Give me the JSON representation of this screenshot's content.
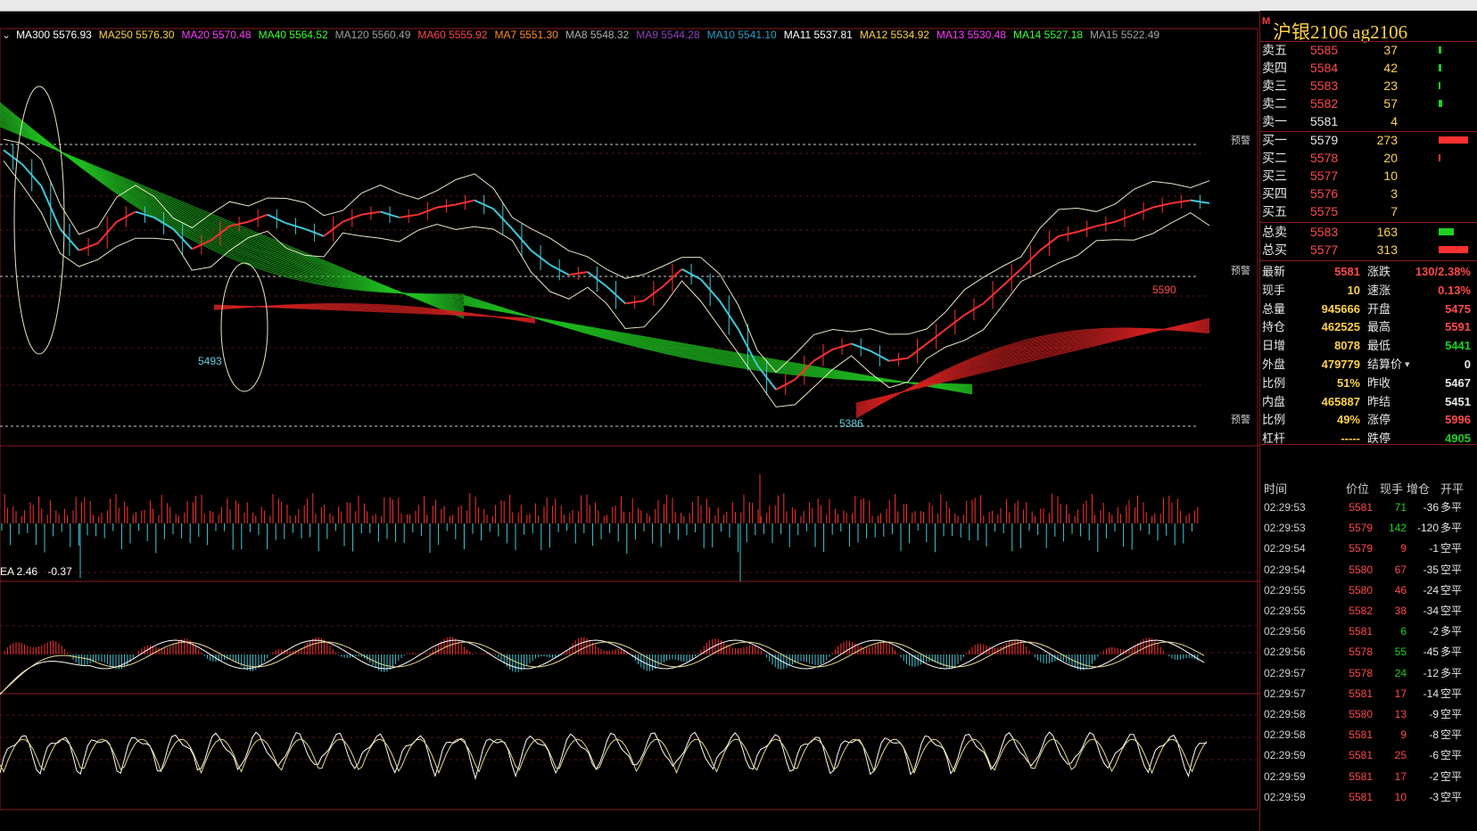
{
  "panel": {
    "title_mark": "M",
    "title": "沪银2106  ag2106",
    "asks": [
      {
        "label": "卖五",
        "price": "5585",
        "vol": "37",
        "bar": 0.05
      },
      {
        "label": "卖四",
        "price": "5584",
        "vol": "42",
        "bar": 0.05
      },
      {
        "label": "卖三",
        "price": "5583",
        "vol": "23",
        "bar": 0.03
      },
      {
        "label": "卖二",
        "price": "5582",
        "vol": "57",
        "bar": 0.07
      },
      {
        "label": "卖一",
        "price": "5581",
        "vol": "4",
        "bar": 0.0
      }
    ],
    "bids": [
      {
        "label": "买一",
        "price": "5579",
        "vol": "273",
        "bar": 0.55
      },
      {
        "label": "买二",
        "price": "5578",
        "vol": "20",
        "bar": 0.03
      },
      {
        "label": "买三",
        "price": "5577",
        "vol": "10",
        "bar": 0.0
      },
      {
        "label": "买四",
        "price": "5576",
        "vol": "3",
        "bar": 0.0
      },
      {
        "label": "买五",
        "price": "5575",
        "vol": "7",
        "bar": 0.0
      }
    ],
    "totals": [
      {
        "label": "总卖",
        "price": "5583",
        "vol": "163",
        "bar": 0.28,
        "color": "#1fd01f"
      },
      {
        "label": "总买",
        "price": "5577",
        "vol": "313",
        "bar": 0.55,
        "color": "#ff3030"
      }
    ],
    "stats": [
      {
        "l1": "最新",
        "v1": "5581",
        "c1": "#ff4a4a",
        "l2": "涨跌",
        "v2": "130/2.38%",
        "c2": "#ff4a4a"
      },
      {
        "l1": "现手",
        "v1": "10",
        "c1": "#ffd24a",
        "l2": "速涨",
        "v2": "0.13%",
        "c2": "#ff4a4a"
      },
      {
        "l1": "总量",
        "v1": "945666",
        "c1": "#ffd24a",
        "l2": "开盘",
        "v2": "5475",
        "c2": "#ff4a4a"
      },
      {
        "l1": "持仓",
        "v1": "462525",
        "c1": "#ffd24a",
        "l2": "最高",
        "v2": "5591",
        "c2": "#ff4a4a"
      },
      {
        "l1": "日增",
        "v1": "8078",
        "c1": "#ffd24a",
        "l2": "最低",
        "v2": "5441",
        "c2": "#1fd01f"
      },
      {
        "l1": "外盘",
        "v1": "479779",
        "c1": "#ffd24a",
        "l2": "结算价",
        "v2": "0",
        "c2": "#e8e8e8"
      },
      {
        "l1": "比例",
        "v1": "51%",
        "c1": "#ffd24a",
        "l2": "昨收",
        "v2": "5467",
        "c2": "#e8e8e8"
      },
      {
        "l1": "内盘",
        "v1": "465887",
        "c1": "#ffd24a",
        "l2": "昨结",
        "v2": "5451",
        "c2": "#e8e8e8"
      },
      {
        "l1": "比例",
        "v1": "49%",
        "c1": "#ffd24a",
        "l2": "涨停",
        "v2": "5996",
        "c2": "#ff4a4a"
      },
      {
        "l1": "杠杆",
        "v1": "-----",
        "c1": "#ffd24a",
        "l2": "跌停",
        "v2": "4905",
        "c2": "#1fd01f"
      }
    ],
    "tick_head": {
      "time": "时间",
      "price": "价位",
      "vol": "现手",
      "oi": "增仓",
      "type": "开平"
    },
    "ticks": [
      {
        "time": "02:29:53",
        "price": "5581",
        "vol": "71",
        "oi": "-36",
        "type": "多平",
        "vc": "#1fd01f"
      },
      {
        "time": "02:29:53",
        "price": "5579",
        "vol": "142",
        "oi": "-120",
        "type": "多平",
        "vc": "#1fd01f"
      },
      {
        "time": "02:29:54",
        "price": "5579",
        "vol": "9",
        "oi": "-1",
        "type": "空平",
        "vc": "#ff4a4a"
      },
      {
        "time": "02:29:54",
        "price": "5580",
        "vol": "67",
        "oi": "-35",
        "type": "空平",
        "vc": "#ff4a4a"
      },
      {
        "time": "02:29:55",
        "price": "5580",
        "vol": "46",
        "oi": "-24",
        "type": "空平",
        "vc": "#ff4a4a"
      },
      {
        "time": "02:29:55",
        "price": "5582",
        "vol": "38",
        "oi": "-34",
        "type": "空平",
        "vc": "#ff4a4a"
      },
      {
        "time": "02:29:56",
        "price": "5581",
        "vol": "6",
        "oi": "-2",
        "type": "多平",
        "vc": "#1fd01f"
      },
      {
        "time": "02:29:56",
        "price": "5578",
        "vol": "55",
        "oi": "-45",
        "type": "多平",
        "vc": "#1fd01f"
      },
      {
        "time": "02:29:57",
        "price": "5578",
        "vol": "24",
        "oi": "-12",
        "type": "多平",
        "vc": "#1fd01f"
      },
      {
        "time": "02:29:57",
        "price": "5581",
        "vol": "17",
        "oi": "-14",
        "type": "空平",
        "vc": "#ff4a4a"
      },
      {
        "time": "02:29:58",
        "price": "5580",
        "vol": "13",
        "oi": "-9",
        "type": "空平",
        "vc": "#ff4a4a"
      },
      {
        "time": "02:29:58",
        "price": "5581",
        "vol": "9",
        "oi": "-8",
        "type": "空平",
        "vc": "#ff4a4a"
      },
      {
        "time": "02:29:59",
        "price": "5581",
        "vol": "25",
        "oi": "-6",
        "type": "空平",
        "vc": "#ff4a4a"
      },
      {
        "time": "02:29:59",
        "price": "5581",
        "vol": "17",
        "oi": "-2",
        "type": "空平",
        "vc": "#ff4a4a"
      },
      {
        "time": "02:29:59",
        "price": "5581",
        "vol": "10",
        "oi": "-3",
        "type": "空平",
        "vc": "#ff4a4a"
      }
    ]
  },
  "chart": {
    "ma_legend": [
      {
        "name": "MA300",
        "value": "5576.93",
        "color": "#ffffff"
      },
      {
        "name": "MA250",
        "value": "5576.30",
        "color": "#ffd24a"
      },
      {
        "name": "MA20",
        "value": "5570.48",
        "color": "#ff3cff"
      },
      {
        "name": "MA40",
        "value": "5564.52",
        "color": "#3cff3c"
      },
      {
        "name": "MA120",
        "value": "5560.49",
        "color": "#a0a0a0"
      },
      {
        "name": "MA60",
        "value": "5555.92",
        "color": "#ff4a4a"
      },
      {
        "name": "MA7",
        "value": "5551.30",
        "color": "#ff8c2a"
      },
      {
        "name": "MA8",
        "value": "5548.32",
        "color": "#b0b0b0"
      },
      {
        "name": "MA9",
        "value": "5544.28",
        "color": "#9040c0"
      },
      {
        "name": "MA10",
        "value": "5541.10",
        "color": "#2aa0c8"
      },
      {
        "name": "MA11",
        "value": "5537.81",
        "color": "#ffffff"
      },
      {
        "name": "MA12",
        "value": "5534.92",
        "color": "#ffd24a"
      },
      {
        "name": "MA13",
        "value": "5530.48",
        "color": "#ff3cff"
      },
      {
        "name": "MA14",
        "value": "5527.18",
        "color": "#3cff3c"
      },
      {
        "name": "MA15",
        "value": "5522.49",
        "color": "#a0a0a0"
      }
    ],
    "alert_label": "预警",
    "low1": "5493",
    "low2": "5386",
    "high1": "5590",
    "indicator_label": "EA 2.46",
    "indicator_value": "-0.37"
  },
  "chart_data": {
    "type": "line",
    "title": "",
    "series": [
      {
        "name": "",
        "values": [
          5565,
          5555,
          5540,
          5510,
          5495,
          5500,
          5515,
          5522,
          5518,
          5510,
          5496,
          5502,
          5512,
          5515,
          5520,
          5514,
          5510,
          5505,
          5515,
          5520,
          5522,
          5518,
          5520,
          5525,
          5527,
          5530,
          5524,
          5510,
          5495,
          5485,
          5478,
          5480,
          5470,
          5458,
          5460,
          5470,
          5482,
          5475,
          5460,
          5440,
          5415,
          5398,
          5405,
          5418,
          5426,
          5430,
          5425,
          5418,
          5420,
          5430,
          5440,
          5450,
          5458,
          5470,
          5482,
          5495,
          5505,
          5508,
          5512,
          5515,
          5520,
          5525,
          5528,
          5530,
          5528
        ]
      }
    ],
    "ylim": [
      5370,
      5600
    ]
  }
}
